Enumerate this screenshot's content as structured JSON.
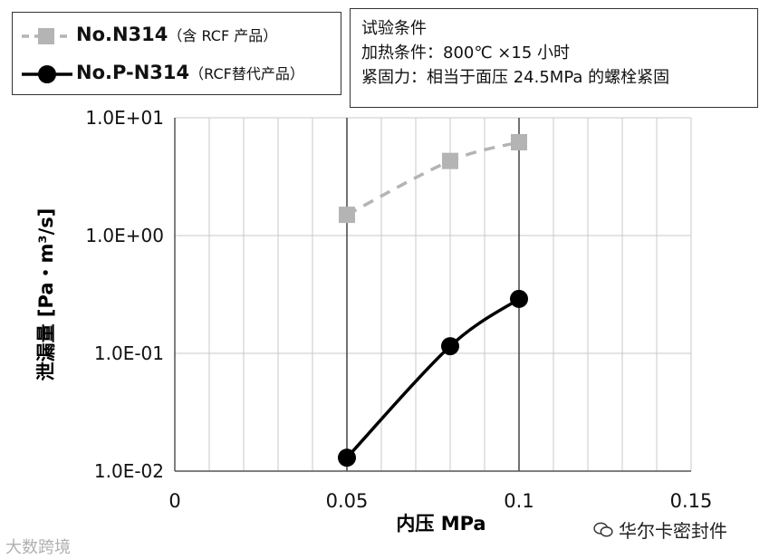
{
  "chart_data": {
    "type": "line",
    "title": "",
    "xlabel": "内压 MPa",
    "ylabel": "泄漏量 [Pa・m³/s]",
    "x_ticks": [
      "0",
      "0.05",
      "0.1",
      "0.15"
    ],
    "y_ticks": [
      "1.0E-02",
      "1.0E-01",
      "1.0E+00",
      "1.0E+01"
    ],
    "xlim": [
      0,
      0.15
    ],
    "ylim": [
      0.01,
      10
    ],
    "yscale": "log",
    "grid": true,
    "series": [
      {
        "name": "No.N314（含RCF产品）",
        "name_main": "No.N314",
        "name_sub": "（含 RCF 产品）",
        "color": "#b4b4b4",
        "line_style": "dashed",
        "marker": "square",
        "x": [
          0.05,
          0.08,
          0.1
        ],
        "values": [
          1.5,
          4.3,
          6.2
        ]
      },
      {
        "name": "No.P-N314（RCF替代产品）",
        "name_main": "No.P-N314",
        "name_sub": "（RCF替代产品）",
        "color": "#000000",
        "line_style": "solid",
        "marker": "circle",
        "x": [
          0.05,
          0.08,
          0.1
        ],
        "values": [
          0.013,
          0.115,
          0.29
        ]
      }
    ],
    "legend_position": "top-left"
  },
  "conditions": {
    "title": "试验条件",
    "heating": "加热条件：800℃ ×15 小时",
    "tightening": "紧固力：相当于面压 24.5MPa 的螺栓紧固"
  },
  "watermarks": {
    "left": "大数跨境",
    "brand": "华尔卡密封件"
  }
}
